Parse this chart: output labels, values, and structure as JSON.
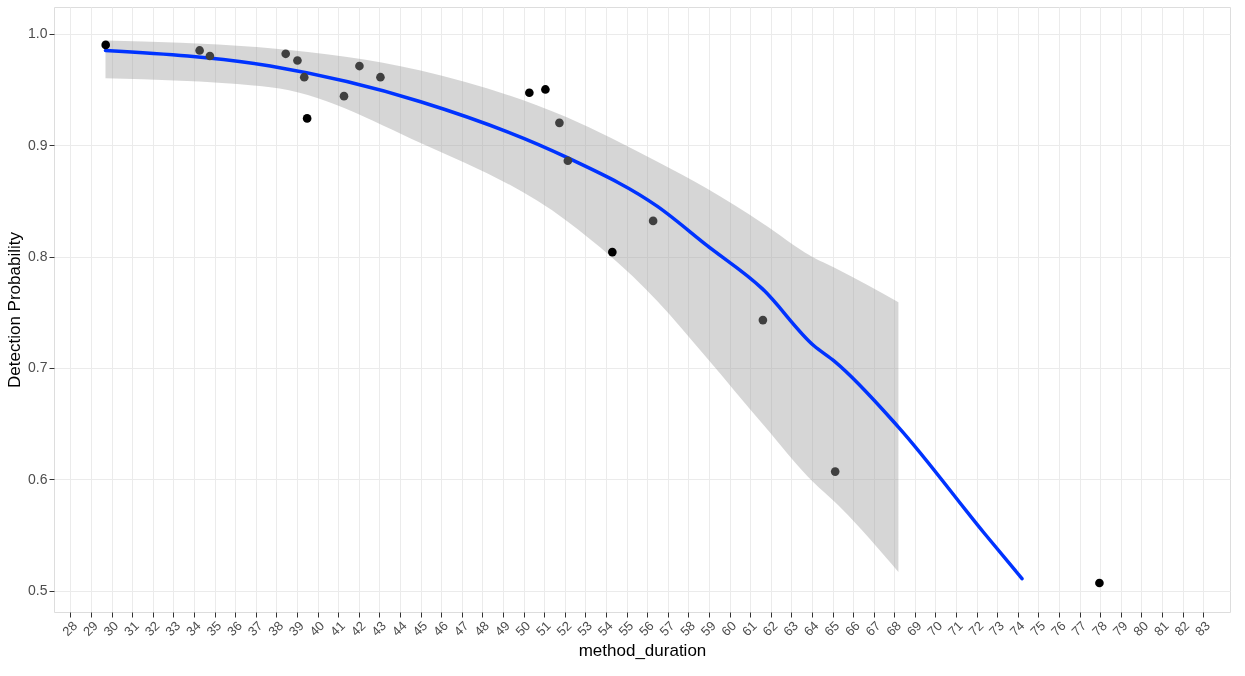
{
  "chart_data": {
    "type": "scatter",
    "xlabel": "method_duration",
    "ylabel": "Detection Probability",
    "xlim": [
      27.2,
      84.3
    ],
    "ylim": [
      0.481,
      1.024
    ],
    "xticks": [
      28,
      29,
      30,
      31,
      32,
      33,
      34,
      35,
      36,
      37,
      38,
      39,
      40,
      41,
      42,
      43,
      44,
      45,
      46,
      47,
      48,
      49,
      50,
      51,
      52,
      53,
      54,
      55,
      56,
      57,
      58,
      59,
      60,
      61,
      62,
      63,
      64,
      65,
      66,
      67,
      68,
      69,
      70,
      71,
      72,
      73,
      74,
      75,
      76,
      77,
      78,
      79,
      80,
      81,
      82,
      83
    ],
    "yticks": [
      {
        "value": 0.5,
        "label": "0.5"
      },
      {
        "value": 0.6,
        "label": "0.6"
      },
      {
        "value": 0.7,
        "label": "0.7"
      },
      {
        "value": 0.8,
        "label": "0.8"
      },
      {
        "value": 0.9,
        "label": "0.9"
      },
      {
        "value": 1.0,
        "label": "1.0"
      }
    ],
    "grid": true,
    "series": [
      {
        "marker": "circle",
        "x": [
          29.71,
          34.27,
          34.77,
          38.45,
          39.02,
          39.35,
          39.49,
          41.28,
          42.03,
          43.05,
          50.28,
          51.06,
          51.74,
          52.15,
          54.31,
          56.29,
          61.62,
          65.13,
          77.96
        ],
        "values": [
          0.99,
          0.985,
          0.98,
          0.982,
          0.976,
          0.961,
          0.924,
          0.944,
          0.971,
          0.961,
          0.947,
          0.95,
          0.92,
          0.886,
          0.804,
          0.832,
          0.743,
          0.607,
          0.507
        ],
        "colors": [
          "#000000",
          "#404040",
          "#404040",
          "#404040",
          "#404040",
          "#404040",
          "#000000",
          "#404040",
          "#404040",
          "#404040",
          "#000000",
          "#000000",
          "#404040",
          "#404040",
          "#000000",
          "#404040",
          "#404040",
          "#404040",
          "#000000"
        ]
      },
      {
        "type": "line",
        "line_style": "solid",
        "color": "#0033ff",
        "x": [
          29.7,
          37.7,
          45.0,
          52.1,
          56.5,
          58.9,
          61.6,
          64.1,
          65.1,
          68.2,
          72.4,
          74.2
        ],
        "values": [
          0.985,
          0.971,
          0.939,
          0.889,
          0.845,
          0.81,
          0.771,
          0.72,
          0.706,
          0.647,
          0.551,
          0.511
        ],
        "lower": [
          0.96,
          0.952,
          0.902,
          0.832,
          0.76,
          0.709,
          0.65,
          0.597,
          0.58,
          0.517,
          null,
          null
        ],
        "upper": [
          0.994,
          0.987,
          0.967,
          0.925,
          0.885,
          0.861,
          0.83,
          0.799,
          0.79,
          0.759,
          null,
          null
        ]
      }
    ]
  }
}
